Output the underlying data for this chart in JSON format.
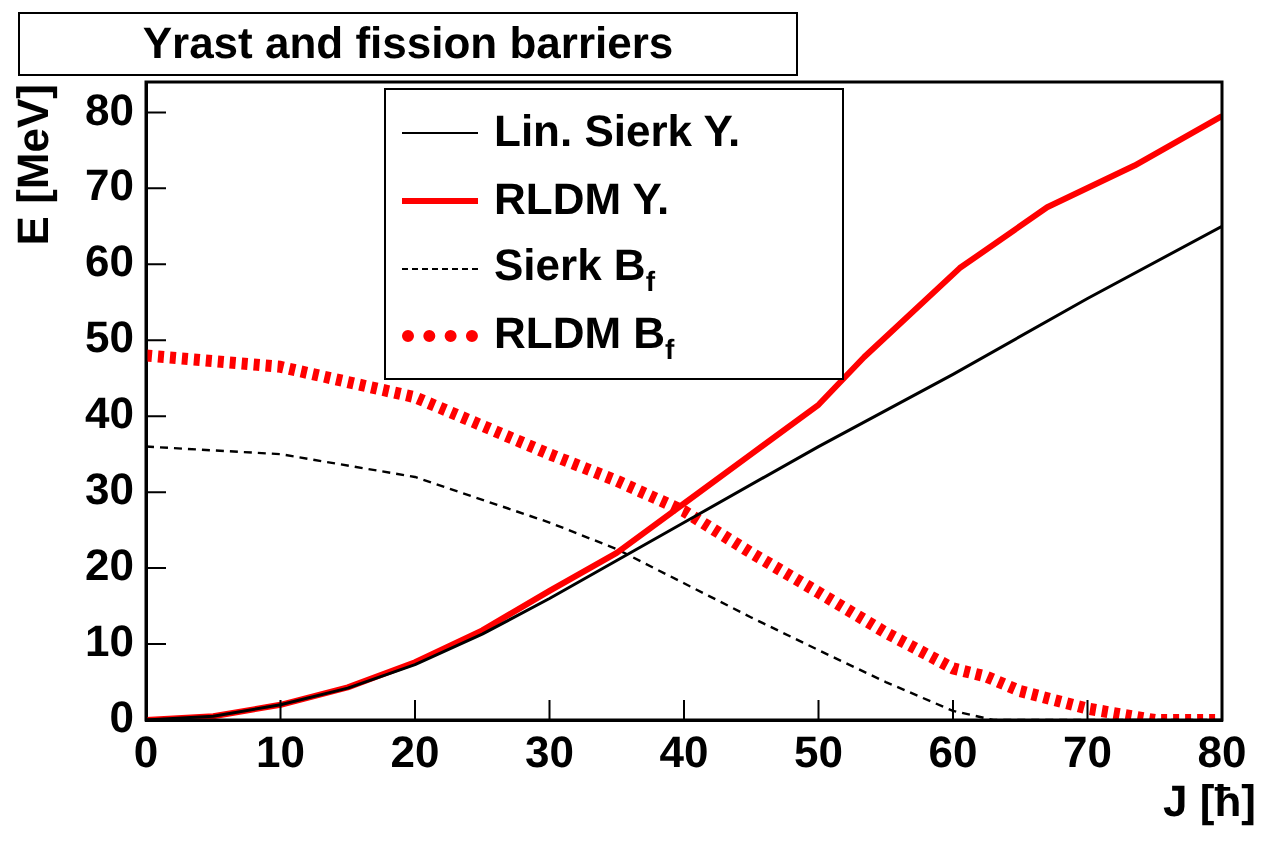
{
  "chart_data": {
    "type": "line",
    "title": "Yrast and fission barriers",
    "xlabel": "J [ħ]",
    "ylabel": "E [MeV]",
    "xlim": [
      0,
      80
    ],
    "xticks": [
      0,
      10,
      20,
      30,
      40,
      50,
      60,
      70,
      80
    ],
    "ylim": [
      0,
      84
    ],
    "yticks": [
      0,
      10,
      20,
      30,
      40,
      50,
      60,
      70,
      80
    ],
    "grid": false,
    "legend": "top",
    "marker": "none",
    "series": [
      {
        "name": "Lin. Sierk Y.",
        "color": "#000000",
        "line_style": "solid",
        "x": [
          0,
          5,
          10,
          15,
          20,
          25,
          30,
          35,
          40,
          50,
          60,
          70,
          80
        ],
        "values": [
          0,
          0.5,
          2,
          4.2,
          7.3,
          11.3,
          16,
          21,
          26,
          36,
          45.5,
          55.5,
          65
        ]
      },
      {
        "name": "RLDM Y.",
        "color": "#ff0000",
        "line_style": "solid",
        "x": [
          0,
          5,
          10,
          15,
          20,
          25,
          30,
          35,
          40,
          45,
          50,
          53.4,
          60.5,
          67,
          73.5,
          80
        ],
        "values": [
          0,
          0.5,
          2,
          4.3,
          7.6,
          11.8,
          17,
          22,
          28.5,
          35,
          41.5,
          47.8,
          59.5,
          67.5,
          73,
          79.5
        ]
      },
      {
        "name": "Sierk B$_{f}$",
        "color": "#000000",
        "line_style": "dashed",
        "x": [
          0,
          10,
          20,
          30,
          35,
          40,
          45,
          50,
          55,
          60,
          63,
          80
        ],
        "values": [
          36,
          35,
          32,
          26,
          22.5,
          18,
          13.5,
          9.2,
          5,
          1.2,
          0,
          0
        ]
      },
      {
        "name": "RLDM B$_{f}$",
        "color": "#ff0000",
        "line_style": "dotted",
        "x": [
          0,
          10,
          20,
          30,
          35,
          40,
          45,
          50,
          55,
          60,
          62.5,
          65,
          70,
          75,
          80
        ],
        "values": [
          48,
          46.5,
          42.5,
          35,
          31.5,
          27.5,
          22,
          16.8,
          11.5,
          6.8,
          5.7,
          3.8,
          1.5,
          0,
          0
        ]
      }
    ]
  }
}
